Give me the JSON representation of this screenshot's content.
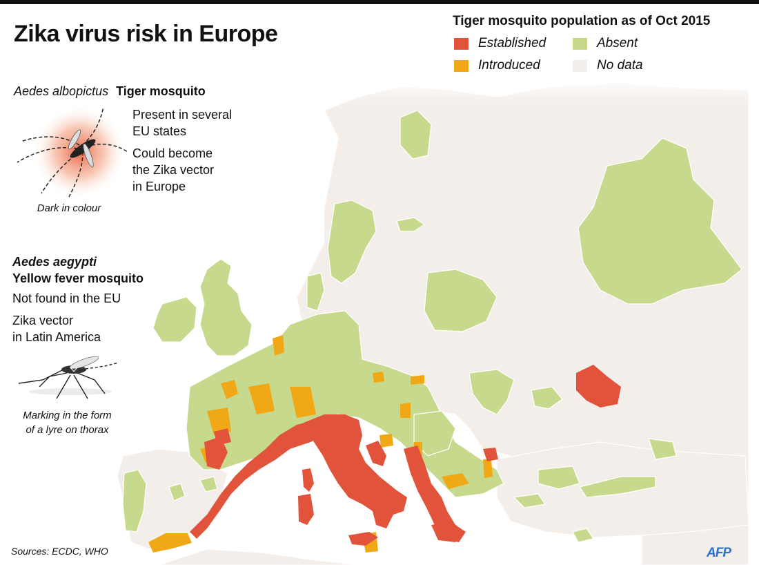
{
  "title": "Zika virus risk in Europe",
  "legend": {
    "title": "Tiger mosquito population as of Oct 2015",
    "items": [
      {
        "label": "Established",
        "color": "#e2533c"
      },
      {
        "label": "Introduced",
        "color": "#f1a816"
      },
      {
        "label": "Absent",
        "color": "#c6d98c"
      },
      {
        "label": "No data",
        "color": "#f4eeea"
      }
    ]
  },
  "tiger": {
    "species": "Aedes albopictus",
    "common_name": "Tiger mosquito",
    "lines1": [
      "Present in several",
      "EU states"
    ],
    "lines2": [
      "Could become",
      "the Zika vector",
      "in Europe"
    ],
    "caption": "Dark in colour",
    "icon": "tiger-mosquito-icon"
  },
  "aegypti": {
    "species": "Aedes aegypti",
    "common_name": "Yellow fever mosquito",
    "line1": "Not found in the EU",
    "lines2": [
      "Zika vector",
      "in Latin America"
    ],
    "caption_lines": [
      "Marking in the form",
      "of a lyre on thorax"
    ],
    "icon": "yellow-fever-mosquito-icon"
  },
  "sources": "Sources: ECDC, WHO",
  "credit": "AFP",
  "colors": {
    "sea": "#ffffff",
    "land_no_data": "#f4eeea",
    "border": "#ffffff"
  }
}
